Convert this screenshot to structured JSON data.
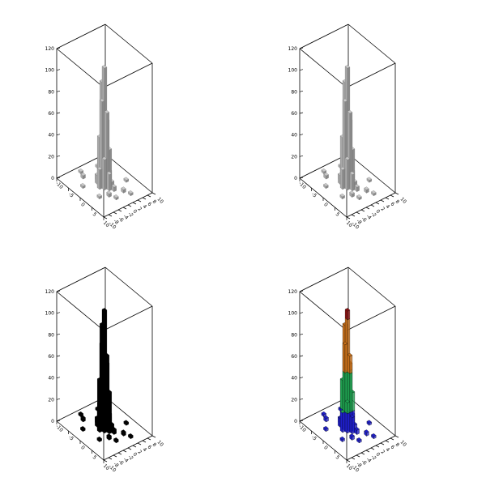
{
  "chart_data": [
    {
      "type": "lego",
      "style": "gray",
      "colors": {
        "top": "#c8c8c8",
        "left": "#a9a9a9",
        "right": "#8a8a8a",
        "edge": "#6e6e6e"
      },
      "zticks": [
        "0",
        "20",
        "40",
        "60",
        "80",
        "100",
        "120"
      ],
      "xticks": [
        "-10",
        "-5",
        "0",
        "5",
        "10"
      ],
      "yticks": [
        "-10",
        "-8",
        "-6",
        "-4",
        "-2",
        "0",
        "2",
        "4",
        "6",
        "8",
        "10"
      ],
      "xlim": [
        -10,
        10
      ],
      "ylim": [
        -10,
        10
      ],
      "zlim": [
        0,
        120
      ]
    },
    {
      "type": "lego",
      "style": "gray",
      "colors": {
        "top": "#c8c8c8",
        "left": "#a9a9a9",
        "right": "#8a8a8a",
        "edge": "#6e6e6e"
      },
      "zticks": [
        "0",
        "20",
        "40",
        "60",
        "80",
        "100",
        "120"
      ],
      "xticks": [
        "-10",
        "-5",
        "0",
        "5",
        "10"
      ],
      "yticks": [
        "-10",
        "-8",
        "-6",
        "-4",
        "-2",
        "0",
        "2",
        "4",
        "6",
        "8",
        "10"
      ],
      "xlim": [
        -10,
        10
      ],
      "ylim": [
        -10,
        10
      ],
      "zlim": [
        0,
        120
      ]
    },
    {
      "type": "lego",
      "style": "black",
      "colors": {
        "top": "#000000",
        "left": "#000000",
        "right": "#000000",
        "edge": "#000000"
      },
      "zticks": [
        "0",
        "20",
        "40",
        "60",
        "80",
        "100",
        "120"
      ],
      "xticks": [
        "-10",
        "-5",
        "0",
        "5",
        "10"
      ],
      "yticks": [
        "-10",
        "-8",
        "-6",
        "-4",
        "-2",
        "0",
        "2",
        "4",
        "6",
        "8",
        "10"
      ],
      "xlim": [
        -10,
        10
      ],
      "ylim": [
        -10,
        10
      ],
      "zlim": [
        0,
        120
      ]
    },
    {
      "type": "lego",
      "style": "rainbow",
      "colors": {
        "low": "#1f1fcc",
        "mid": "#1fa050",
        "high": "#c8701a",
        "top": "#8a1010"
      },
      "zticks": [
        "0",
        "20",
        "40",
        "60",
        "80",
        "100",
        "120"
      ],
      "xticks": [
        "-10",
        "-5",
        "0",
        "5",
        "10"
      ],
      "yticks": [
        "-10",
        "-8",
        "-6",
        "-4",
        "-2",
        "0",
        "2",
        "4",
        "6",
        "8",
        "10"
      ],
      "xlim": [
        -10,
        10
      ],
      "ylim": [
        -10,
        10
      ],
      "zlim": [
        0,
        120
      ]
    }
  ],
  "histogram": {
    "bins": [
      {
        "x": 0,
        "y": 0,
        "z": 110
      },
      {
        "x": -1,
        "y": 0,
        "z": 95
      },
      {
        "x": 0,
        "y": -1,
        "z": 80
      },
      {
        "x": 1,
        "y": 0,
        "z": 70
      },
      {
        "x": 0,
        "y": 1,
        "z": 60
      },
      {
        "x": -1,
        "y": -1,
        "z": 45
      },
      {
        "x": 1,
        "y": 1,
        "z": 35
      },
      {
        "x": -1,
        "y": 1,
        "z": 30
      },
      {
        "x": 1,
        "y": -1,
        "z": 28
      },
      {
        "x": -2,
        "y": 0,
        "z": 20
      },
      {
        "x": 0,
        "y": -2,
        "z": 18
      },
      {
        "x": 2,
        "y": 0,
        "z": 15
      },
      {
        "x": 0,
        "y": 2,
        "z": 12
      },
      {
        "x": -2,
        "y": -1,
        "z": 8
      },
      {
        "x": 2,
        "y": 1,
        "z": 7
      },
      {
        "x": -3,
        "y": 0,
        "z": 5
      },
      {
        "x": 3,
        "y": 1,
        "z": 4
      },
      {
        "x": -4,
        "y": 2,
        "z": 4
      },
      {
        "x": 4,
        "y": -2,
        "z": 3
      },
      {
        "x": -6,
        "y": -3,
        "z": 3
      },
      {
        "x": 5,
        "y": 3,
        "z": 3
      },
      {
        "x": -7,
        "y": 4,
        "z": 2
      },
      {
        "x": 6,
        "y": -1,
        "z": 2
      },
      {
        "x": -5,
        "y": 6,
        "z": 2
      },
      {
        "x": 3,
        "y": -5,
        "z": 2
      },
      {
        "x": -3,
        "y": -6,
        "z": 2
      },
      {
        "x": 7,
        "y": 4,
        "z": 2
      },
      {
        "x": -8,
        "y": -2,
        "z": 2
      },
      {
        "x": 2,
        "y": 7,
        "z": 2
      }
    ]
  }
}
